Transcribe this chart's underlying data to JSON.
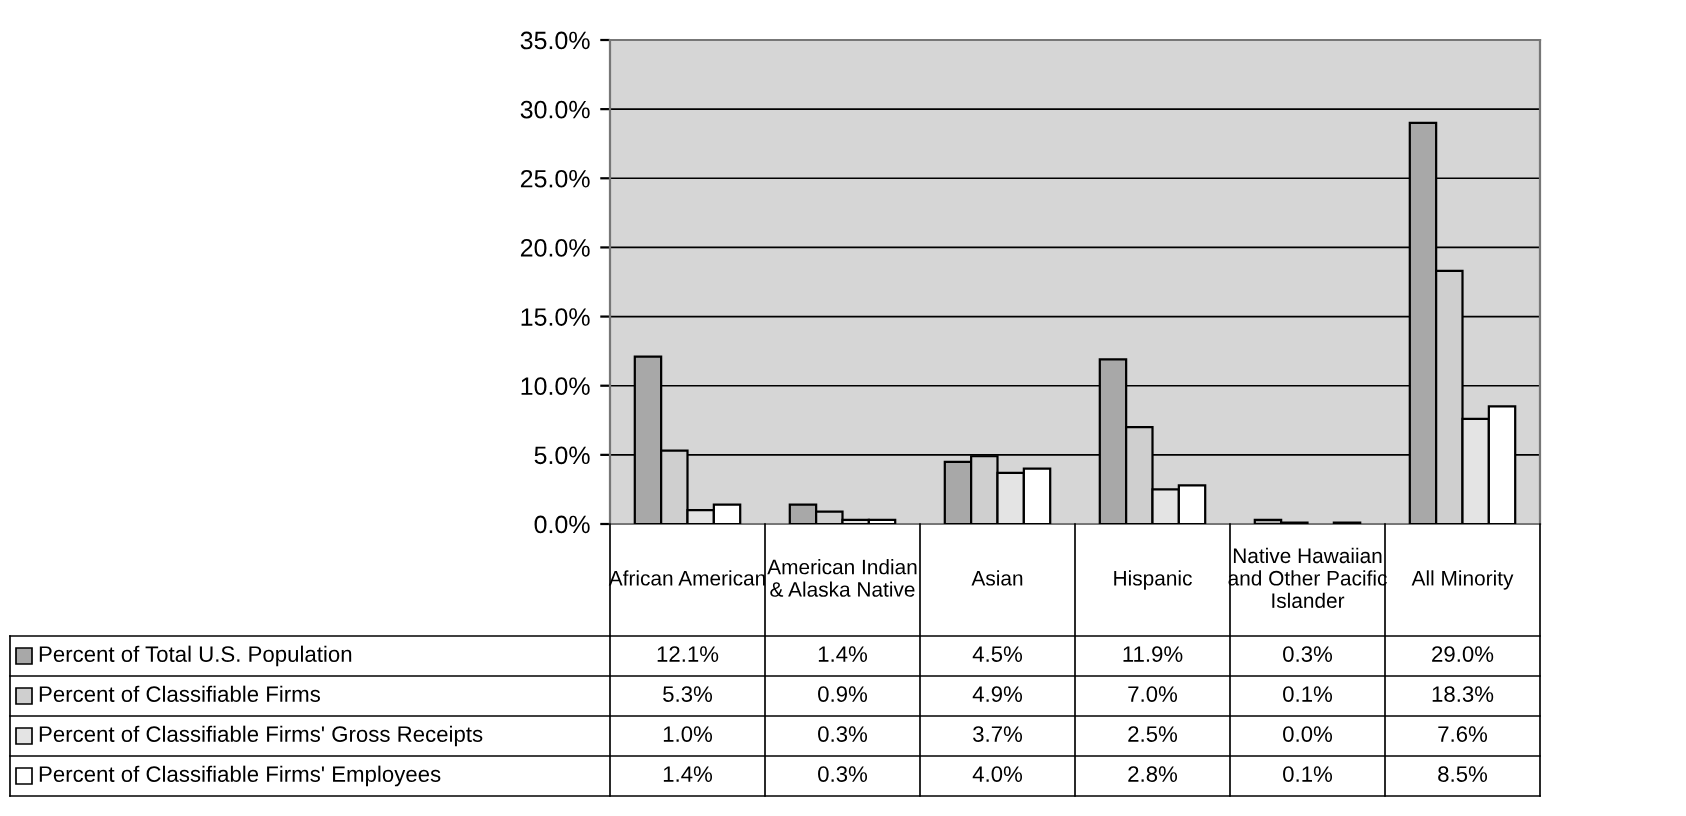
{
  "chart_data": {
    "type": "bar",
    "categories": [
      "African American",
      "American Indian & Alaska Native",
      "Asian",
      "Hispanic",
      "Native Hawaiian and Other Pacific Islander",
      "All Minority"
    ],
    "series": [
      {
        "name": "Percent of Total U.S. Population",
        "color": "#a8a8a8",
        "values": [
          12.1,
          1.4,
          4.5,
          11.9,
          0.3,
          29.0
        ],
        "value_labels": [
          "12.1%",
          "1.4%",
          "4.5%",
          "11.9%",
          "0.3%",
          "29.0%"
        ]
      },
      {
        "name": "Percent of Classifiable Firms",
        "color": "#cfcfcf",
        "values": [
          5.3,
          0.9,
          4.9,
          7.0,
          0.1,
          18.3
        ],
        "value_labels": [
          "5.3%",
          "0.9%",
          "4.9%",
          "7.0%",
          "0.1%",
          "18.3%"
        ]
      },
      {
        "name": "Percent of Classifiable Firms' Gross Receipts",
        "color": "#e4e4e4",
        "values": [
          1.0,
          0.3,
          3.7,
          2.5,
          0.0,
          7.6
        ],
        "value_labels": [
          "1.0%",
          "0.3%",
          "3.7%",
          "2.5%",
          "0.0%",
          "7.6%"
        ]
      },
      {
        "name": "Percent of Classifiable Firms' Employees",
        "color": "#ffffff",
        "values": [
          1.4,
          0.3,
          4.0,
          2.8,
          0.1,
          8.5
        ],
        "value_labels": [
          "1.4%",
          "0.3%",
          "4.0%",
          "2.8%",
          "0.1%",
          "8.5%"
        ]
      }
    ],
    "ylim": [
      0,
      35
    ],
    "yticks": [
      {
        "value": 0,
        "label": "0.0%"
      },
      {
        "value": 5,
        "label": "5.0%"
      },
      {
        "value": 10,
        "label": "10.0%"
      },
      {
        "value": 15,
        "label": "15.0%"
      },
      {
        "value": 20,
        "label": "20.0%"
      },
      {
        "value": 25,
        "label": "25.0%"
      },
      {
        "value": 30,
        "label": "30.0%"
      },
      {
        "value": 35,
        "label": "35.0%"
      }
    ],
    "grid": "y",
    "legend": "bottom left"
  }
}
